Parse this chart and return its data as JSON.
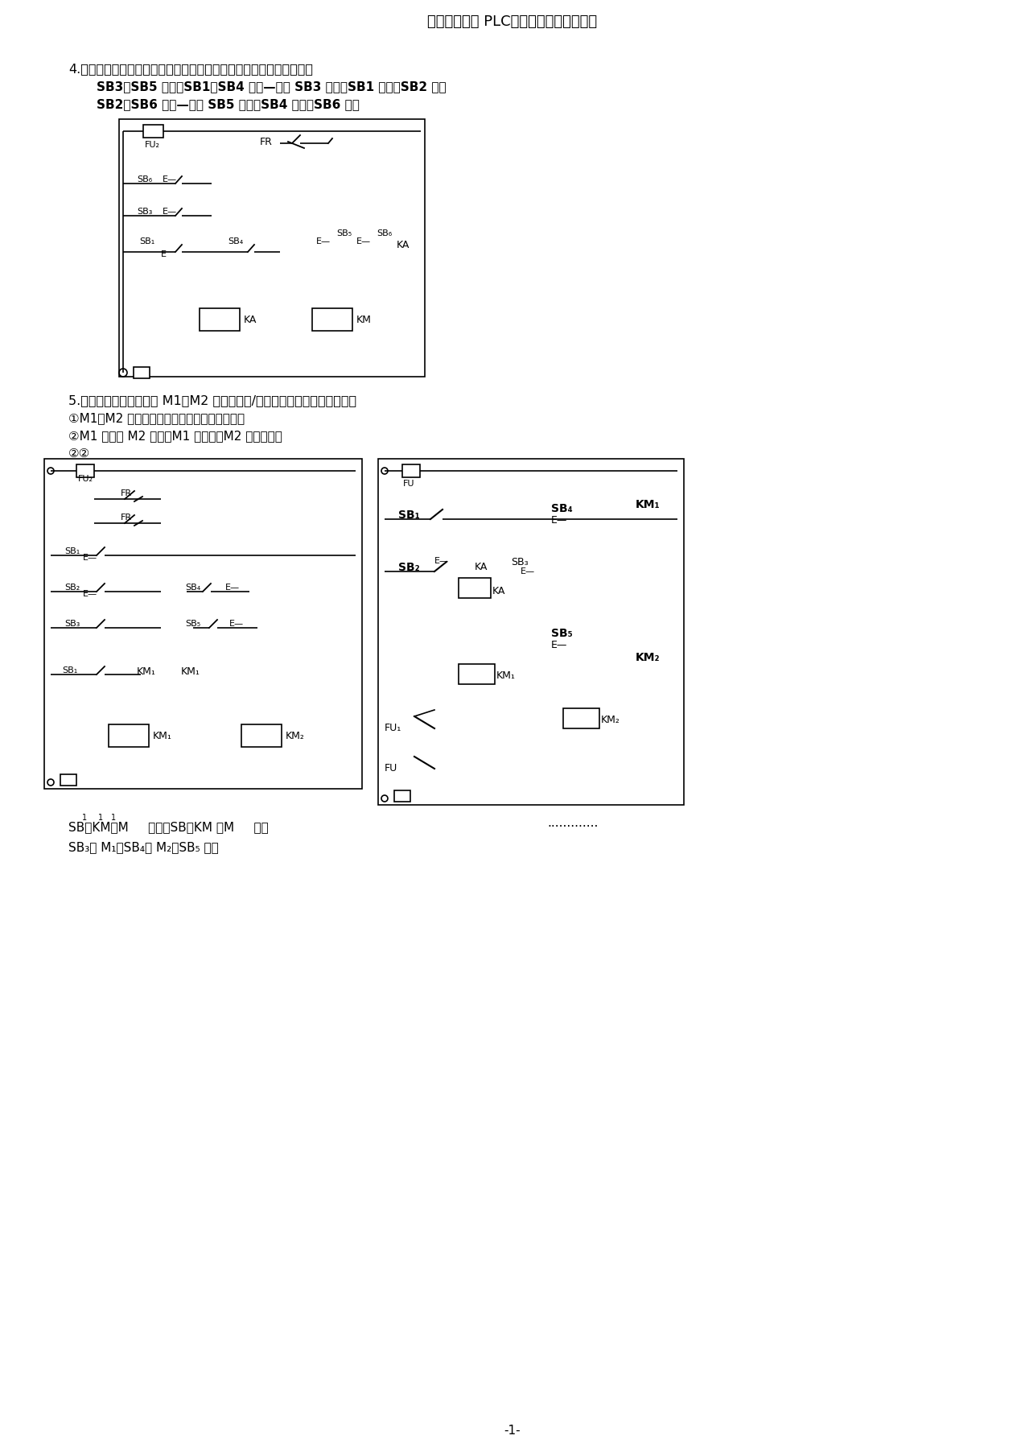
{
  "title": "【电气控刻与 PLC】习题、测试题及答案",
  "q4_text": "4.试设计可进行两处操作，对一台电动机实现长动和点动的控制电路。",
  "q4_sub1": "SB3、SB5 点动；SB1、SB4 长动—处为 SB3 点动、SB1 长动、SB2 停止",
  "q4_sub2": "SB2、SB6 停止—处为 SB5 点动、SB4 长动、SB6 停止",
  "q5_text": "5.试设计两台笼型电动机 M1、M2 的次序起动/停止的控制电路，要求如下：",
  "q5_req1": "①M1、M2 能顺序启动，并能同时或分别停止。",
  "q5_req2": "②M1 启动后 M2 启动，M1 可点动，M2 独自停止。",
  "q5_req3": "②②",
  "bottom_text1": "SB、KM、M    启动，SB、KM 、M    启动",
  "bottom_text2": "SB₃停 M₁，SB₄停 M₂    ，SB₅ 总停",
  "page_num": "-1-",
  "bg_color": "#ffffff",
  "text_color": "#000000",
  "line_color": "#000000"
}
